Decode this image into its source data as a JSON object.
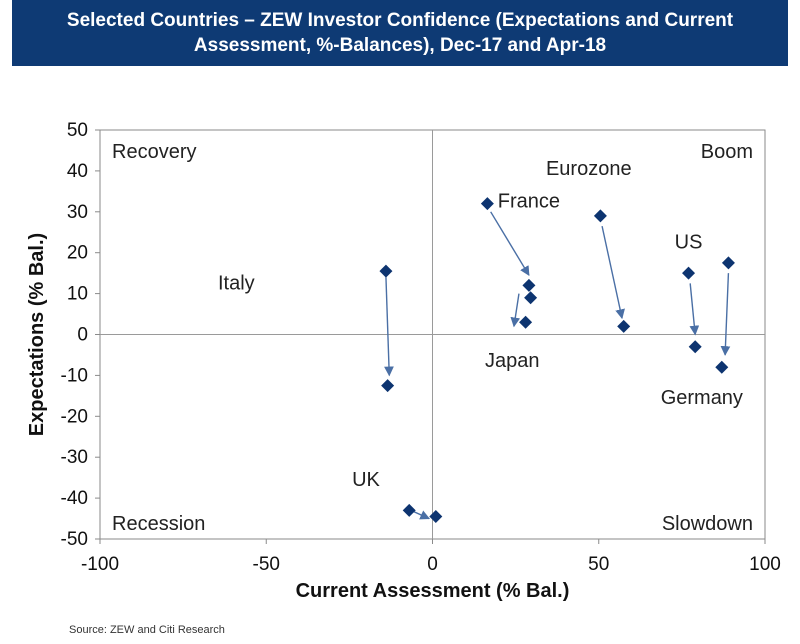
{
  "title": {
    "line1": "Selected Countries – ZEW Investor Confidence (Expectations and Current",
    "line2": "Assessment, %-Balances), Dec-17 and Apr-18"
  },
  "source": "Source: ZEW and Citi Research",
  "colors": {
    "banner": "#0e3a74",
    "marker": "#0d3470",
    "arrow": "#4a6fa5"
  },
  "chart_data": {
    "type": "scatter",
    "xlabel": "Current Assessment (% Bal.)",
    "ylabel": "Expectations (% Bal.)",
    "xlim": [
      -100,
      100
    ],
    "ylim": [
      -50,
      50
    ],
    "xticks": [
      -100,
      -50,
      0,
      50,
      100
    ],
    "yticks": [
      50,
      40,
      30,
      20,
      10,
      0,
      -10,
      -20,
      -30,
      -40,
      -50
    ],
    "grid": false,
    "legend": "none",
    "quadrants": {
      "top_left": "Recovery",
      "top_right": "Boom",
      "bottom_left": "Recession",
      "bottom_right": "Slowdown"
    },
    "series": [
      {
        "name": "Italy",
        "points": [
          {
            "x": -14,
            "y": 15.5
          },
          {
            "x": -13.5,
            "y": -12.5
          }
        ]
      },
      {
        "name": "UK",
        "points": [
          {
            "x": -7,
            "y": -43
          },
          {
            "x": 1,
            "y": -44.5
          }
        ]
      },
      {
        "name": "France",
        "points": [
          {
            "x": 16.5,
            "y": 32
          },
          {
            "x": 29,
            "y": 12
          }
        ]
      },
      {
        "name": "Japan",
        "points": [
          {
            "x": 29.5,
            "y": 9
          },
          {
            "x": 28,
            "y": 3
          }
        ]
      },
      {
        "name": "Eurozone",
        "points": [
          {
            "x": 50.5,
            "y": 29
          },
          {
            "x": 57.5,
            "y": 2
          }
        ]
      },
      {
        "name": "US",
        "points": [
          {
            "x": 77,
            "y": 15
          },
          {
            "x": 79,
            "y": -3
          }
        ]
      },
      {
        "name": "Germany",
        "points": [
          {
            "x": 89,
            "y": 17.5
          },
          {
            "x": 87,
            "y": -8
          }
        ]
      }
    ],
    "labels": [
      {
        "text": "Italy",
        "x": -59,
        "y": 11
      },
      {
        "text": "UK",
        "x": -20,
        "y": -37
      },
      {
        "text": "France",
        "x": 29,
        "y": 31
      },
      {
        "text": "Japan",
        "x": 24,
        "y": -8
      },
      {
        "text": "Eurozone",
        "x": 47,
        "y": 39
      },
      {
        "text": "US",
        "x": 77,
        "y": 21
      },
      {
        "text": "Germany",
        "x": 81,
        "y": -17
      }
    ],
    "arrows": [
      {
        "from": [
          -14,
          14
        ],
        "to": [
          -13,
          -10
        ]
      },
      {
        "from": [
          -6.5,
          -43
        ],
        "to": [
          -1,
          -45
        ]
      },
      {
        "from": [
          17.5,
          30
        ],
        "to": [
          29,
          14.5
        ]
      },
      {
        "from": [
          26,
          10
        ],
        "to": [
          24.5,
          2
        ]
      },
      {
        "from": [
          51,
          26.5
        ],
        "to": [
          57,
          4
        ]
      },
      {
        "from": [
          77.5,
          12.5
        ],
        "to": [
          79,
          0
        ]
      },
      {
        "from": [
          89,
          15
        ],
        "to": [
          88,
          -5
        ]
      }
    ]
  }
}
